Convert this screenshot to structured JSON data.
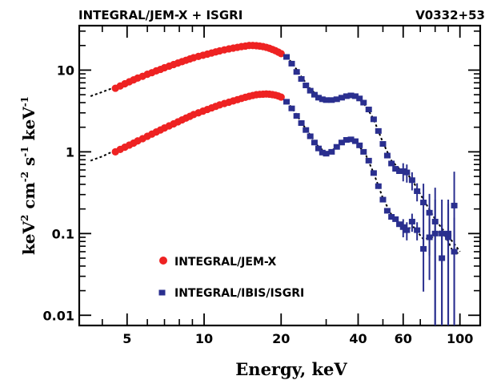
{
  "chart_data": {
    "type": "scatter",
    "title": "INTEGRAL/JEM-X + ISGRI",
    "title_right": "V0332+53",
    "xlabel": "Energy, keV",
    "ylabel_parts": {
      "a": "keV",
      "a_sup": "2",
      "b": " cm",
      "b_sup": "-2",
      "c": " s",
      "c_sup": "-1",
      "d": " keV",
      "d_sup": "-1"
    },
    "xscale": "log",
    "yscale": "log",
    "xlim": [
      3.25,
      120
    ],
    "ylim": [
      0.0075,
      35
    ],
    "x_ticks": [
      {
        "value": 5,
        "label": "5"
      },
      {
        "value": 10,
        "label": "10"
      },
      {
        "value": 20,
        "label": "20"
      },
      {
        "value": 40,
        "label": "40"
      },
      {
        "value": 60,
        "label": "60"
      },
      {
        "value": 100,
        "label": "100"
      }
    ],
    "y_ticks": [
      {
        "value": 0.01,
        "label": "0.01"
      },
      {
        "value": 0.1,
        "label": "0.1"
      },
      {
        "value": 1,
        "label": "1"
      },
      {
        "value": 10,
        "label": "10"
      }
    ],
    "legend": [
      {
        "label": "INTEGRAL/JEM-X",
        "color": "#ee2222",
        "marker": "circle"
      },
      {
        "label": "INTEGRAL/IBIS/ISGRI",
        "color": "#2a2f8f",
        "marker": "square"
      }
    ],
    "legend_position": "lower-left",
    "colors": {
      "jemx": "#ee2222",
      "isgri": "#2a2f8f",
      "model": "#000000"
    },
    "series": [
      {
        "instrument": "jemx",
        "points": [
          [
            4.5,
            6.0
          ],
          [
            4.7,
            6.4
          ],
          [
            4.9,
            6.8
          ],
          [
            5.1,
            7.2
          ],
          [
            5.3,
            7.6
          ],
          [
            5.5,
            8.0
          ],
          [
            5.75,
            8.4
          ],
          [
            6.0,
            8.9
          ],
          [
            6.25,
            9.3
          ],
          [
            6.5,
            9.8
          ],
          [
            6.75,
            10.2
          ],
          [
            7.0,
            10.7
          ],
          [
            7.3,
            11.2
          ],
          [
            7.6,
            11.7
          ],
          [
            7.9,
            12.2
          ],
          [
            8.2,
            12.7
          ],
          [
            8.5,
            13.2
          ],
          [
            8.8,
            13.7
          ],
          [
            9.1,
            14.2
          ],
          [
            9.5,
            14.7
          ],
          [
            9.9,
            15.2
          ],
          [
            10.3,
            15.7
          ],
          [
            10.7,
            16.2
          ],
          [
            11.1,
            16.7
          ],
          [
            11.5,
            17.2
          ],
          [
            12.0,
            17.7
          ],
          [
            12.5,
            18.2
          ],
          [
            13.0,
            18.6
          ],
          [
            13.5,
            19.0
          ],
          [
            14.0,
            19.4
          ],
          [
            14.5,
            19.7
          ],
          [
            15.0,
            20.0
          ],
          [
            15.5,
            20.0
          ],
          [
            16.0,
            19.9
          ],
          [
            16.5,
            19.7
          ],
          [
            17.0,
            19.4
          ],
          [
            17.5,
            19.0
          ],
          [
            18.0,
            18.5
          ],
          [
            18.5,
            17.9
          ],
          [
            19.0,
            17.3
          ],
          [
            19.5,
            16.6
          ],
          [
            20.0,
            15.9
          ]
        ]
      },
      {
        "instrument": "jemx",
        "points": [
          [
            4.5,
            1.0
          ],
          [
            4.7,
            1.07
          ],
          [
            4.9,
            1.14
          ],
          [
            5.1,
            1.21
          ],
          [
            5.3,
            1.28
          ],
          [
            5.5,
            1.36
          ],
          [
            5.75,
            1.45
          ],
          [
            6.0,
            1.55
          ],
          [
            6.25,
            1.65
          ],
          [
            6.5,
            1.75
          ],
          [
            6.75,
            1.85
          ],
          [
            7.0,
            1.96
          ],
          [
            7.3,
            2.08
          ],
          [
            7.6,
            2.2
          ],
          [
            7.9,
            2.33
          ],
          [
            8.2,
            2.46
          ],
          [
            8.5,
            2.59
          ],
          [
            8.8,
            2.72
          ],
          [
            9.1,
            2.86
          ],
          [
            9.5,
            3.0
          ],
          [
            9.9,
            3.15
          ],
          [
            10.3,
            3.3
          ],
          [
            10.7,
            3.45
          ],
          [
            11.1,
            3.6
          ],
          [
            11.5,
            3.75
          ],
          [
            12.0,
            3.9
          ],
          [
            12.5,
            4.05
          ],
          [
            13.0,
            4.2
          ],
          [
            13.5,
            4.35
          ],
          [
            14.0,
            4.5
          ],
          [
            14.5,
            4.65
          ],
          [
            15.0,
            4.78
          ],
          [
            15.5,
            4.9
          ],
          [
            16.0,
            5.0
          ],
          [
            16.5,
            5.05
          ],
          [
            17.0,
            5.08
          ],
          [
            17.5,
            5.1
          ],
          [
            18.0,
            5.08
          ],
          [
            18.5,
            5.02
          ],
          [
            19.0,
            4.94
          ],
          [
            19.5,
            4.82
          ],
          [
            20.0,
            4.68
          ]
        ]
      },
      {
        "instrument": "isgri",
        "points": [
          [
            21,
            14.5
          ],
          [
            22,
            12.0
          ],
          [
            23,
            9.5
          ],
          [
            24,
            7.8
          ],
          [
            25,
            6.5
          ],
          [
            26,
            5.6
          ],
          [
            27,
            5.0
          ],
          [
            28,
            4.6
          ],
          [
            29,
            4.4
          ],
          [
            30,
            4.3
          ],
          [
            31.5,
            4.3
          ],
          [
            33,
            4.4
          ],
          [
            34.5,
            4.6
          ],
          [
            36,
            4.8
          ],
          [
            37.5,
            4.9
          ],
          [
            39,
            4.8
          ],
          [
            40.5,
            4.5
          ],
          [
            42,
            4.0
          ],
          [
            44,
            3.3
          ],
          [
            46,
            2.5
          ],
          [
            48,
            1.8
          ],
          [
            50,
            1.25
          ],
          [
            52,
            0.9
          ],
          [
            54,
            0.72
          ],
          [
            56,
            0.62
          ],
          [
            58,
            0.58
          ],
          [
            60,
            0.58
          ],
          [
            62,
            0.56
          ],
          [
            65,
            0.45
          ],
          [
            68,
            0.33
          ],
          [
            72,
            0.24
          ],
          [
            76,
            0.18
          ],
          [
            80,
            0.14
          ],
          [
            85,
            0.1
          ],
          [
            90,
            0.09
          ],
          [
            95,
            0.22
          ]
        ]
      },
      {
        "instrument": "isgri",
        "points": [
          [
            21,
            4.1
          ],
          [
            22,
            3.4
          ],
          [
            23,
            2.75
          ],
          [
            24,
            2.25
          ],
          [
            25,
            1.85
          ],
          [
            26,
            1.55
          ],
          [
            27,
            1.3
          ],
          [
            28,
            1.1
          ],
          [
            29,
            0.98
          ],
          [
            30,
            0.95
          ],
          [
            31.5,
            1.0
          ],
          [
            33,
            1.15
          ],
          [
            34.5,
            1.3
          ],
          [
            36,
            1.4
          ],
          [
            37.5,
            1.42
          ],
          [
            39,
            1.35
          ],
          [
            40.5,
            1.2
          ],
          [
            42,
            1.0
          ],
          [
            44,
            0.78
          ],
          [
            46,
            0.55
          ],
          [
            48,
            0.38
          ],
          [
            50,
            0.26
          ],
          [
            52,
            0.19
          ],
          [
            54,
            0.16
          ],
          [
            56,
            0.15
          ],
          [
            58,
            0.13
          ],
          [
            60,
            0.12
          ],
          [
            62,
            0.11
          ],
          [
            65,
            0.14
          ],
          [
            68,
            0.11
          ],
          [
            72,
            0.065
          ],
          [
            76,
            0.09
          ],
          [
            80,
            0.1
          ],
          [
            85,
            0.05
          ],
          [
            90,
            0.1
          ],
          [
            95,
            0.06
          ]
        ]
      }
    ],
    "model_curves": [
      {
        "points": [
          [
            3.6,
            4.8
          ],
          [
            4.0,
            5.4
          ],
          [
            5.0,
            7.0
          ],
          [
            6.0,
            8.8
          ],
          [
            8.0,
            12.4
          ],
          [
            10.0,
            15.5
          ],
          [
            13.0,
            18.8
          ],
          [
            15.5,
            20.1
          ],
          [
            18.0,
            18.8
          ],
          [
            20.0,
            16.2
          ],
          [
            22.0,
            12.5
          ],
          [
            24.0,
            8.3
          ],
          [
            26.0,
            5.9
          ],
          [
            28.0,
            4.75
          ],
          [
            30.0,
            4.35
          ],
          [
            33.0,
            4.45
          ],
          [
            36.0,
            4.85
          ],
          [
            38.0,
            4.9
          ],
          [
            40.0,
            4.55
          ],
          [
            43.0,
            3.6
          ],
          [
            46.0,
            2.5
          ],
          [
            50.0,
            1.3
          ],
          [
            54.0,
            0.78
          ],
          [
            58.0,
            0.62
          ],
          [
            62.0,
            0.55
          ],
          [
            66.0,
            0.42
          ],
          [
            72.0,
            0.26
          ],
          [
            80.0,
            0.15
          ],
          [
            88.0,
            0.1
          ],
          [
            95.0,
            0.075
          ],
          [
            100.0,
            0.06
          ]
        ]
      },
      {
        "points": [
          [
            3.6,
            0.78
          ],
          [
            4.0,
            0.88
          ],
          [
            5.0,
            1.22
          ],
          [
            6.0,
            1.55
          ],
          [
            8.0,
            2.38
          ],
          [
            10.0,
            3.2
          ],
          [
            13.0,
            4.25
          ],
          [
            16.0,
            5.0
          ],
          [
            17.5,
            5.1
          ],
          [
            19.0,
            4.95
          ],
          [
            20.0,
            4.7
          ],
          [
            22.0,
            3.5
          ],
          [
            24.0,
            2.3
          ],
          [
            26.0,
            1.6
          ],
          [
            28.0,
            1.15
          ],
          [
            30.0,
            0.98
          ],
          [
            33.0,
            1.12
          ],
          [
            36.0,
            1.38
          ],
          [
            38.0,
            1.4
          ],
          [
            40.0,
            1.22
          ],
          [
            43.0,
            0.9
          ],
          [
            46.0,
            0.55
          ],
          [
            50.0,
            0.27
          ],
          [
            54.0,
            0.17
          ],
          [
            58.0,
            0.135
          ],
          [
            62.0,
            0.115
          ],
          [
            66.0,
            0.12
          ],
          [
            72.0,
            0.085
          ],
          [
            78.0,
            0.09
          ],
          [
            85.0,
            0.11
          ],
          [
            90.0,
            0.08
          ],
          [
            95.0,
            0.055
          ],
          [
            100.0,
            0.06
          ]
        ]
      }
    ]
  }
}
